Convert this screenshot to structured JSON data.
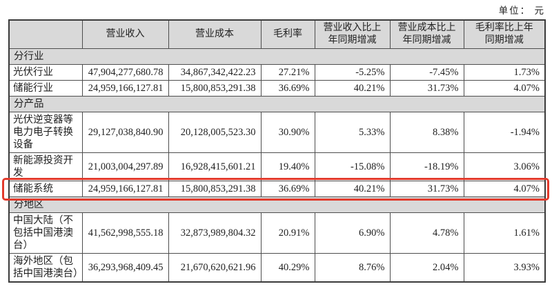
{
  "unit_label": "单位： 元",
  "table": {
    "columns": [
      "",
      "营业收入",
      "营业成本",
      "毛利率",
      "营业收入比上年同期增减",
      "营业成本比上年同期增减",
      "毛利率比上年同期增减"
    ],
    "rows": [
      {
        "type": "section",
        "label": "分行业"
      },
      {
        "type": "data",
        "label": "光伏行业",
        "values": [
          "47,904,277,680.78",
          "34,867,342,422.23",
          "27.21%",
          "-5.25%",
          "-7.45%",
          "1.73%"
        ]
      },
      {
        "type": "data",
        "label": "储能行业",
        "values": [
          "24,959,166,127.81",
          "15,800,853,291.38",
          "36.69%",
          "40.21%",
          "31.73%",
          "4.07%"
        ]
      },
      {
        "type": "section",
        "label": "分产品"
      },
      {
        "type": "data",
        "label": "光伏逆变器等电力电子转换设备",
        "values": [
          "29,127,038,840.90",
          "20,128,005,523.30",
          "30.90%",
          "5.33%",
          "8.38%",
          "-1.94%"
        ]
      },
      {
        "type": "data",
        "label": "新能源投资开发",
        "values": [
          "21,003,004,297.89",
          "16,928,415,601.21",
          "19.40%",
          "-15.08%",
          "-18.19%",
          "3.06%"
        ]
      },
      {
        "type": "data",
        "label": "储能系统",
        "highlighted": true,
        "values": [
          "24,959,166,127.81",
          "15,800,853,291.38",
          "36.69%",
          "40.21%",
          "31.73%",
          "4.07%"
        ]
      },
      {
        "type": "section",
        "label": "分地区"
      },
      {
        "type": "data",
        "label": "中国大陆（不包括中国港澳台）",
        "values": [
          "41,562,998,555.18",
          "32,873,989,804.32",
          "20.91%",
          "6.90%",
          "4.78%",
          "1.61%"
        ]
      },
      {
        "type": "data",
        "label": "海外地区（包括中国港澳台）",
        "values": [
          "36,293,968,409.45",
          "21,670,620,621.96",
          "40.29%",
          "8.76%",
          "2.04%",
          "3.93%"
        ]
      }
    ]
  },
  "highlight": {
    "color": "#e23a2c",
    "row_label": "储能系统"
  }
}
